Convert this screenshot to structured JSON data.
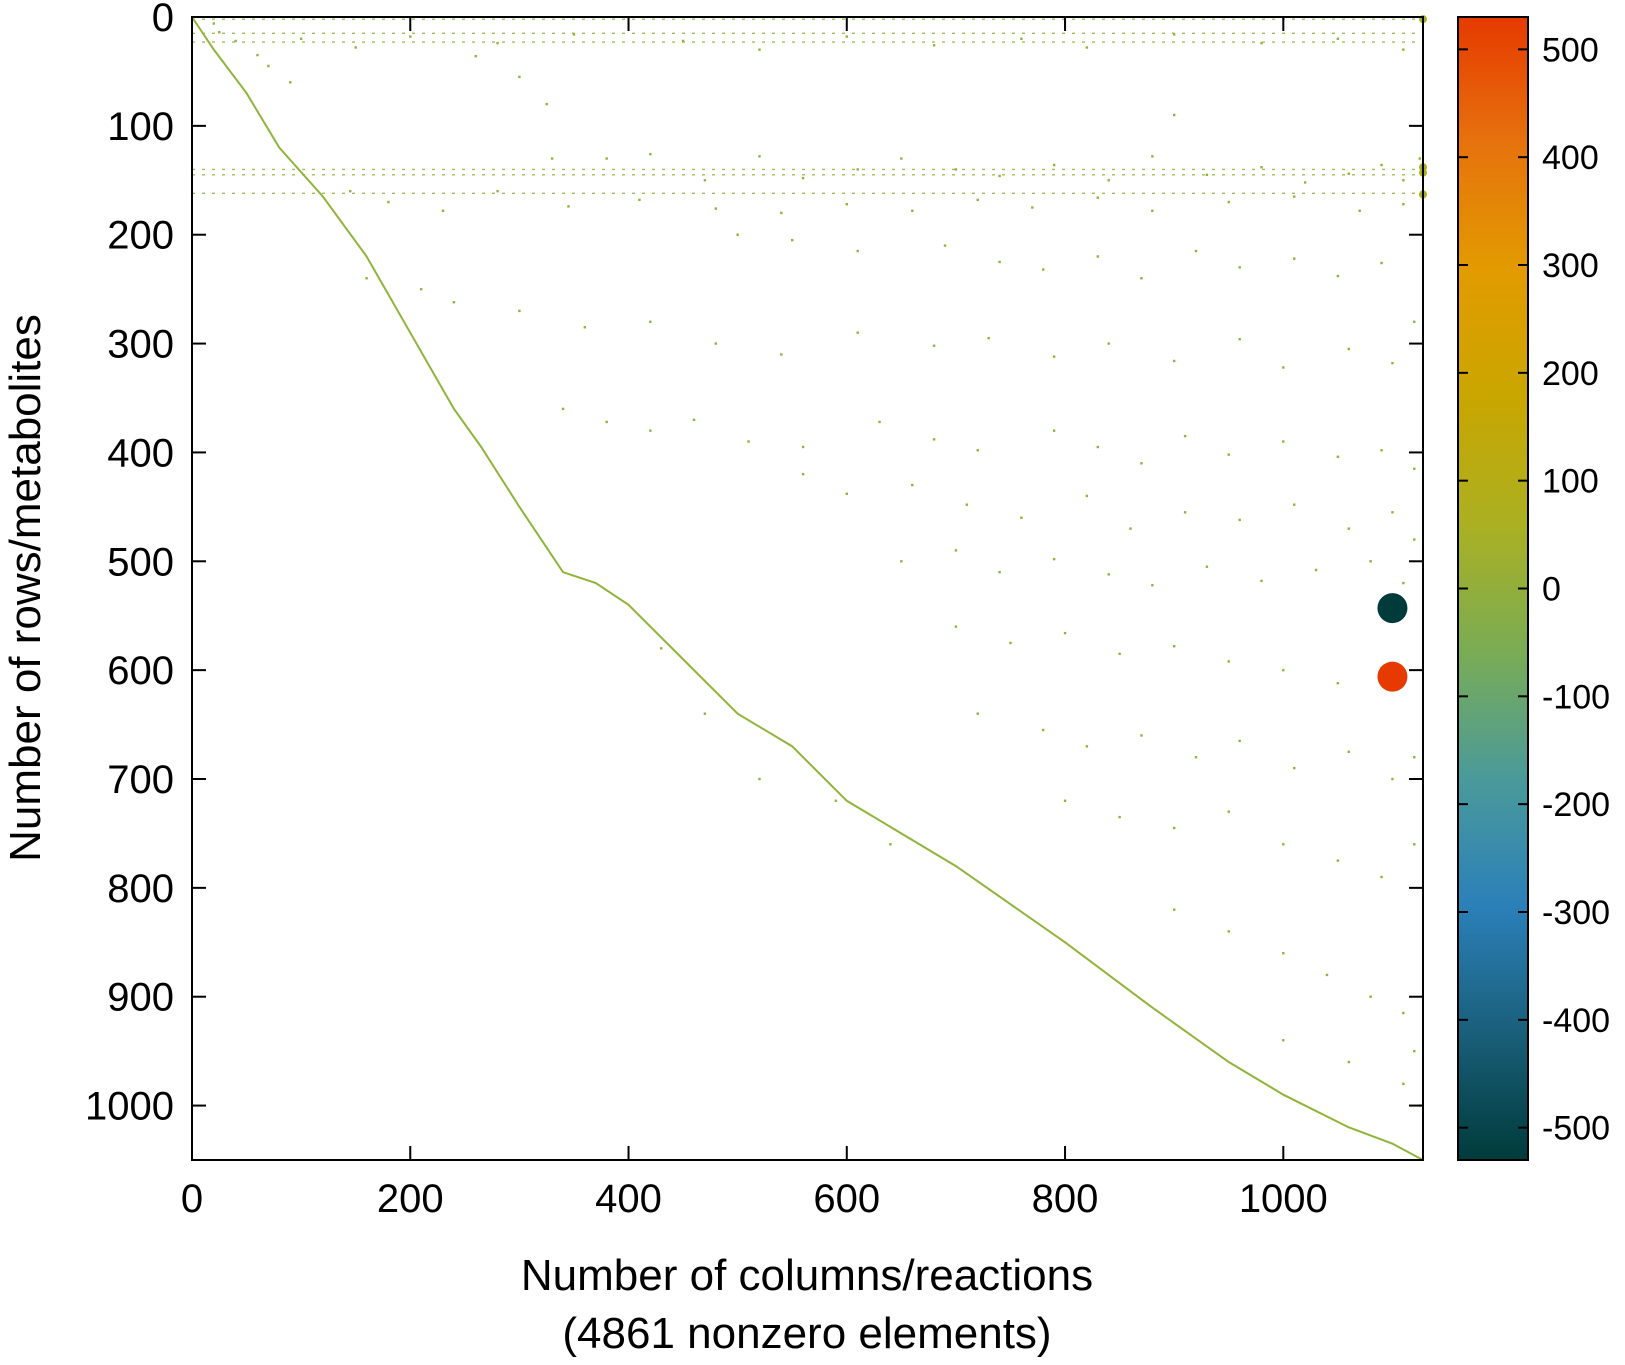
{
  "chart_data": {
    "type": "scatter",
    "subtype": "sparsity-pattern",
    "xlabel": "Number of columns/reactions",
    "xlabel_note": "(4861 nonzero elements)",
    "ylabel": "Number of rows/metabolites",
    "xlim": [
      0,
      1128
    ],
    "ylim": [
      1050,
      0
    ],
    "y_inverted": true,
    "xticks": [
      0,
      200,
      400,
      600,
      800,
      1000
    ],
    "yticks": [
      0,
      100,
      200,
      300,
      400,
      500,
      600,
      700,
      800,
      900,
      1000
    ],
    "grid": false,
    "colorbar": {
      "range": [
        -530,
        530
      ],
      "ticks": [
        500,
        400,
        300,
        200,
        100,
        0,
        -100,
        -200,
        -300,
        -400,
        -500
      ],
      "colors": [
        "#003b3b",
        "#1a5f7a",
        "#2b80b9",
        "#4a9a9a",
        "#7aac55",
        "#aab022",
        "#c9a600",
        "#e29b00",
        "#e6730d",
        "#e63a00"
      ]
    },
    "base_color": "#8fb43a",
    "diagonal": [
      [
        0,
        0
      ],
      [
        20,
        30
      ],
      [
        50,
        70
      ],
      [
        80,
        120
      ],
      [
        120,
        165
      ],
      [
        160,
        220
      ],
      [
        200,
        290
      ],
      [
        240,
        360
      ],
      [
        265,
        395
      ],
      [
        300,
        450
      ],
      [
        340,
        510
      ],
      [
        370,
        520
      ],
      [
        400,
        540
      ],
      [
        450,
        590
      ],
      [
        500,
        640
      ],
      [
        550,
        670
      ],
      [
        600,
        720
      ],
      [
        700,
        780
      ],
      [
        800,
        850
      ],
      [
        880,
        910
      ],
      [
        950,
        960
      ],
      [
        1000,
        990
      ],
      [
        1060,
        1020
      ],
      [
        1100,
        1035
      ],
      [
        1128,
        1050
      ]
    ],
    "dense_rows": [
      2,
      15,
      23,
      140,
      145,
      162
    ],
    "highlight_points": [
      {
        "x": 1100,
        "y": 543,
        "value": -500
      },
      {
        "x": 1100,
        "y": 606,
        "value": 500
      },
      {
        "x": 1128,
        "y": 2,
        "value": 50
      },
      {
        "x": 1128,
        "y": 138,
        "value": 30
      },
      {
        "x": 1128,
        "y": 143,
        "value": 30
      },
      {
        "x": 1128,
        "y": 163,
        "value": 60
      }
    ],
    "scatter_points": [
      [
        20,
        6
      ],
      [
        25,
        14
      ],
      [
        40,
        22
      ],
      [
        60,
        35
      ],
      [
        70,
        45
      ],
      [
        90,
        60
      ],
      [
        260,
        36
      ],
      [
        300,
        55
      ],
      [
        325,
        80
      ],
      [
        330,
        130
      ],
      [
        380,
        130
      ],
      [
        420,
        126
      ],
      [
        470,
        150
      ],
      [
        520,
        128
      ],
      [
        560,
        148
      ],
      [
        610,
        140
      ],
      [
        650,
        130
      ],
      [
        700,
        140
      ],
      [
        740,
        146
      ],
      [
        790,
        136
      ],
      [
        840,
        150
      ],
      [
        880,
        128
      ],
      [
        930,
        145
      ],
      [
        980,
        138
      ],
      [
        1020,
        152
      ],
      [
        1060,
        144
      ],
      [
        1090,
        136
      ],
      [
        1110,
        150
      ],
      [
        1125,
        130
      ],
      [
        900,
        90
      ],
      [
        145,
        160
      ],
      [
        180,
        170
      ],
      [
        230,
        178
      ],
      [
        280,
        160
      ],
      [
        345,
        174
      ],
      [
        410,
        168
      ],
      [
        480,
        176
      ],
      [
        540,
        180
      ],
      [
        600,
        172
      ],
      [
        660,
        178
      ],
      [
        720,
        168
      ],
      [
        770,
        175
      ],
      [
        830,
        166
      ],
      [
        880,
        178
      ],
      [
        950,
        170
      ],
      [
        1010,
        165
      ],
      [
        1070,
        178
      ],
      [
        1110,
        172
      ],
      [
        500,
        200
      ],
      [
        550,
        205
      ],
      [
        610,
        215
      ],
      [
        690,
        210
      ],
      [
        740,
        225
      ],
      [
        780,
        232
      ],
      [
        830,
        220
      ],
      [
        870,
        240
      ],
      [
        920,
        215
      ],
      [
        960,
        230
      ],
      [
        1010,
        222
      ],
      [
        1050,
        238
      ],
      [
        1090,
        226
      ],
      [
        160,
        240
      ],
      [
        210,
        250
      ],
      [
        240,
        262
      ],
      [
        300,
        270
      ],
      [
        360,
        285
      ],
      [
        420,
        280
      ],
      [
        480,
        300
      ],
      [
        540,
        310
      ],
      [
        610,
        290
      ],
      [
        680,
        302
      ],
      [
        730,
        295
      ],
      [
        790,
        312
      ],
      [
        840,
        300
      ],
      [
        900,
        316
      ],
      [
        960,
        296
      ],
      [
        1000,
        322
      ],
      [
        1060,
        305
      ],
      [
        1100,
        318
      ],
      [
        1120,
        280
      ],
      [
        340,
        360
      ],
      [
        380,
        372
      ],
      [
        420,
        380
      ],
      [
        460,
        370
      ],
      [
        510,
        390
      ],
      [
        560,
        395
      ],
      [
        630,
        372
      ],
      [
        680,
        388
      ],
      [
        720,
        398
      ],
      [
        790,
        380
      ],
      [
        830,
        395
      ],
      [
        870,
        410
      ],
      [
        910,
        385
      ],
      [
        950,
        402
      ],
      [
        1000,
        390
      ],
      [
        1050,
        404
      ],
      [
        1090,
        398
      ],
      [
        1120,
        415
      ],
      [
        560,
        420
      ],
      [
        600,
        438
      ],
      [
        660,
        430
      ],
      [
        710,
        448
      ],
      [
        760,
        460
      ],
      [
        820,
        440
      ],
      [
        860,
        470
      ],
      [
        910,
        455
      ],
      [
        960,
        462
      ],
      [
        1010,
        448
      ],
      [
        1060,
        470
      ],
      [
        1100,
        455
      ],
      [
        1120,
        480
      ],
      [
        650,
        500
      ],
      [
        700,
        490
      ],
      [
        740,
        510
      ],
      [
        790,
        498
      ],
      [
        840,
        512
      ],
      [
        880,
        522
      ],
      [
        930,
        505
      ],
      [
        980,
        518
      ],
      [
        1030,
        508
      ],
      [
        1080,
        500
      ],
      [
        1110,
        520
      ],
      [
        700,
        560
      ],
      [
        750,
        575
      ],
      [
        800,
        566
      ],
      [
        850,
        585
      ],
      [
        900,
        578
      ],
      [
        950,
        592
      ],
      [
        1000,
        600
      ],
      [
        1050,
        612
      ],
      [
        1090,
        598
      ],
      [
        720,
        640
      ],
      [
        780,
        655
      ],
      [
        820,
        670
      ],
      [
        870,
        660
      ],
      [
        920,
        680
      ],
      [
        960,
        665
      ],
      [
        1010,
        690
      ],
      [
        1060,
        675
      ],
      [
        1100,
        700
      ],
      [
        1120,
        680
      ],
      [
        800,
        720
      ],
      [
        850,
        735
      ],
      [
        900,
        745
      ],
      [
        950,
        730
      ],
      [
        1000,
        760
      ],
      [
        1050,
        775
      ],
      [
        1090,
        790
      ],
      [
        1120,
        760
      ],
      [
        900,
        820
      ],
      [
        950,
        840
      ],
      [
        1000,
        860
      ],
      [
        1040,
        880
      ],
      [
        1080,
        900
      ],
      [
        1110,
        915
      ],
      [
        1120,
        950
      ],
      [
        1000,
        940
      ],
      [
        1060,
        960
      ],
      [
        1110,
        980
      ],
      [
        1125,
        1000
      ],
      [
        100,
        20
      ],
      [
        150,
        28
      ],
      [
        200,
        18
      ],
      [
        280,
        24
      ],
      [
        350,
        16
      ],
      [
        450,
        22
      ],
      [
        520,
        30
      ],
      [
        600,
        18
      ],
      [
        680,
        26
      ],
      [
        760,
        20
      ],
      [
        820,
        28
      ],
      [
        900,
        16
      ],
      [
        980,
        24
      ],
      [
        1050,
        20
      ],
      [
        1110,
        30
      ],
      [
        590,
        720
      ],
      [
        640,
        760
      ],
      [
        470,
        640
      ],
      [
        520,
        700
      ],
      [
        430,
        580
      ]
    ]
  }
}
